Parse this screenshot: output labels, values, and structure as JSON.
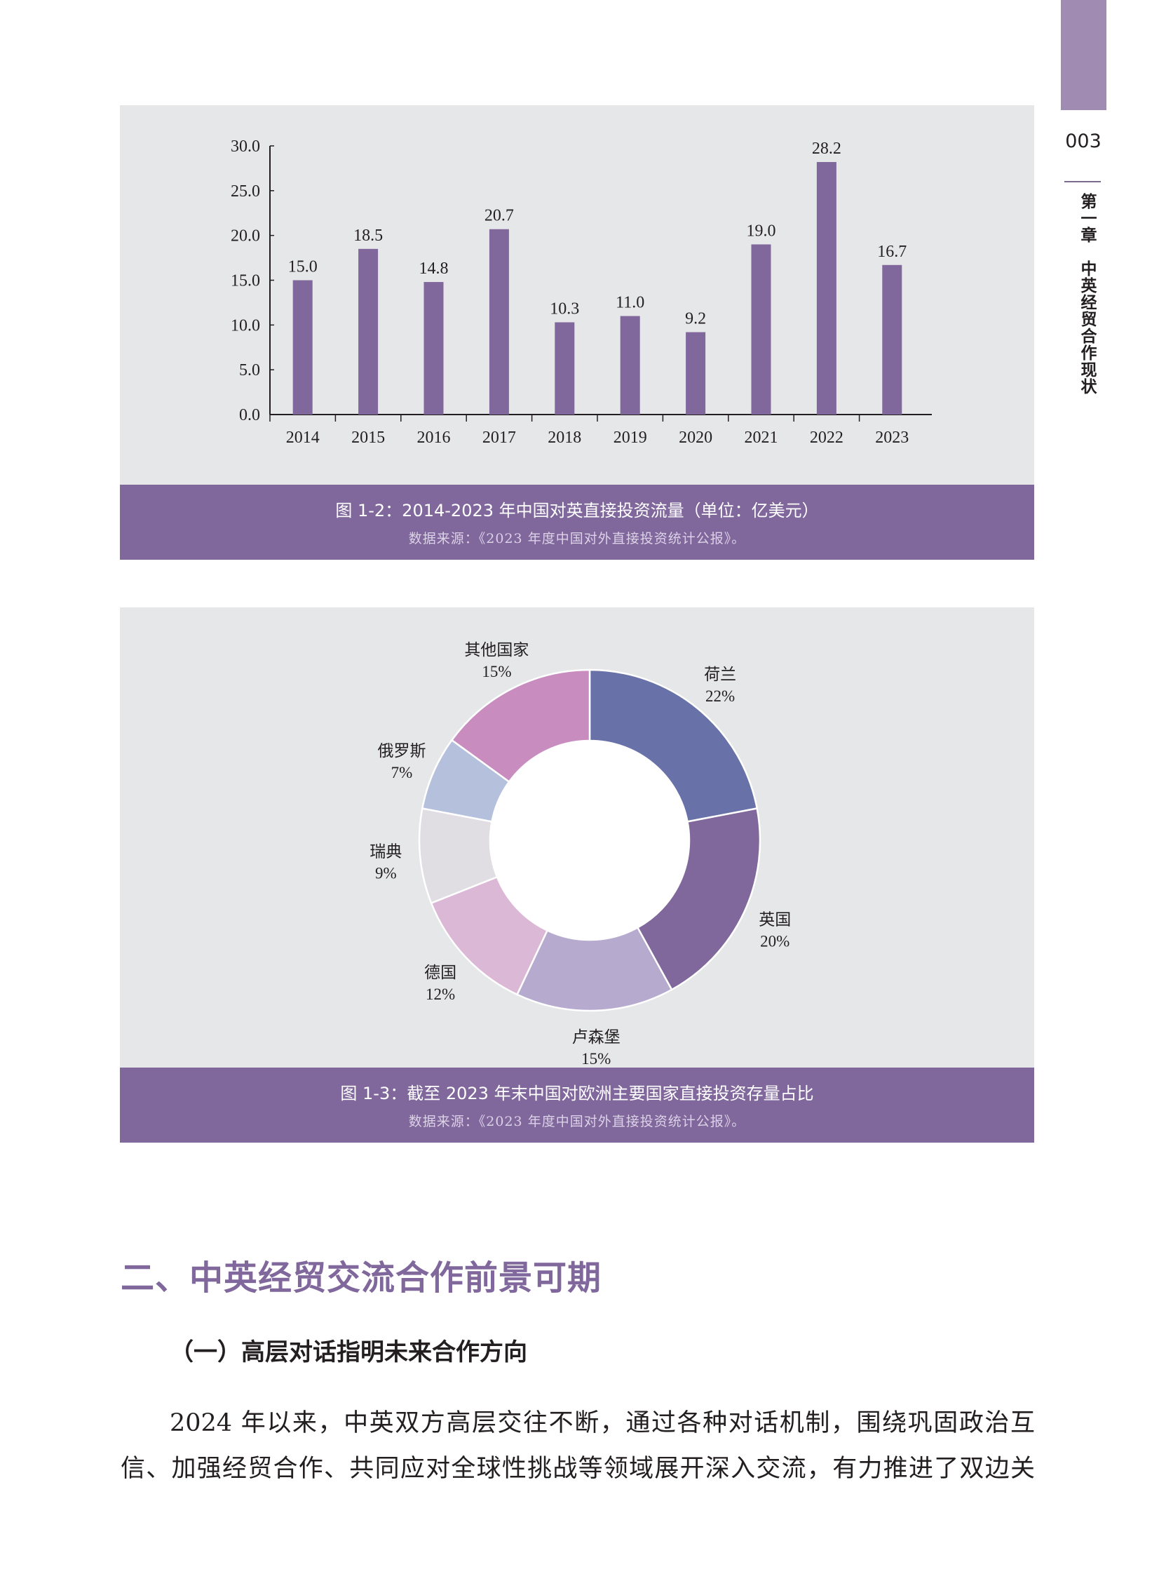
{
  "sidebar": {
    "page_number": "003",
    "chapter": "第一章　中英经贸合作现状",
    "tab_color": "#a08bb3"
  },
  "figure_1_2": {
    "caption": "图 1-2：2014-2023 年中国对英直接投资流量（单位：亿美元）",
    "source": "数据来源：《2023 年度中国对外直接投资统计公报》。"
  },
  "figure_1_3": {
    "caption": "图 1-3：截至 2023 年末中国对欧洲主要国家直接投资存量占比",
    "source": "数据来源：《2023 年度中国对外直接投资统计公报》。"
  },
  "chart_data": [
    {
      "type": "bar",
      "categories": [
        "2014",
        "2015",
        "2016",
        "2017",
        "2018",
        "2019",
        "2020",
        "2021",
        "2022",
        "2023"
      ],
      "values": [
        15.0,
        18.5,
        14.8,
        20.7,
        10.3,
        11.0,
        9.2,
        19.0,
        28.2,
        16.7
      ],
      "data_labels": [
        "15.0",
        "18.5",
        "14.8",
        "20.7",
        "10.3",
        "11.0",
        "9.2",
        "19.0",
        "28.2",
        "16.7"
      ],
      "yticks": [
        "0.0",
        "5.0",
        "10.0",
        "15.0",
        "20.0",
        "25.0",
        "30.0"
      ],
      "ylim": [
        0,
        30
      ],
      "grid": false,
      "color": "#80679c"
    },
    {
      "type": "pie",
      "donut": true,
      "categories": [
        "荷兰",
        "英国",
        "卢森堡",
        "德国",
        "瑞典",
        "俄罗斯",
        "其他国家"
      ],
      "values": [
        22,
        20,
        15,
        12,
        9,
        7,
        15
      ],
      "labels": [
        "22%",
        "20%",
        "15%",
        "12%",
        "9%",
        "7%",
        "15%"
      ],
      "colors": [
        "#6872a9",
        "#80679c",
        "#b7aacf",
        "#dcb8d7",
        "#e0dde3",
        "#b4c0dc",
        "#c98cbf"
      ]
    }
  ],
  "section": {
    "heading": "二、中英经贸交流合作前景可期",
    "subheading": "（一）高层对话指明未来合作方向",
    "lines": [
      "2024 年以来，中英双方高层交往不断，通过各种对话机制，围绕巩固政治互",
      "信、加强经贸合作、共同应对全球性挑战等领域展开深入交流，有力推进了双边关"
    ]
  }
}
